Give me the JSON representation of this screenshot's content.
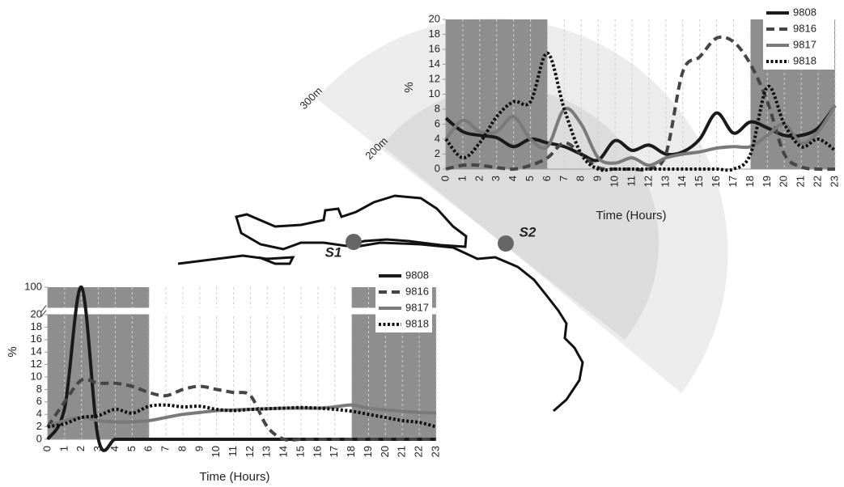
{
  "chart_data": [
    {
      "type": "line",
      "y_label": "%",
      "x_label": "Time (Hours)",
      "x": [
        0,
        1,
        2,
        3,
        4,
        5,
        6,
        7,
        8,
        9,
        10,
        11,
        12,
        13,
        14,
        15,
        16,
        17,
        18,
        19,
        20,
        21,
        22,
        23
      ],
      "xlim": [
        0,
        23
      ],
      "xticks": [
        0,
        1,
        2,
        3,
        4,
        5,
        6,
        7,
        8,
        9,
        10,
        11,
        12,
        13,
        14,
        15,
        16,
        17,
        18,
        19,
        20,
        21,
        22,
        23
      ],
      "ylim": [
        0,
        20
      ],
      "yticks": [
        0,
        2,
        4,
        6,
        8,
        10,
        12,
        14,
        16,
        18,
        20
      ],
      "shaded_ranges": [
        [
          0,
          6
        ],
        [
          18,
          23
        ]
      ],
      "grid": true,
      "legend": "top-right",
      "series": [
        {
          "name": "9808",
          "color": "#1a1a1a",
          "style": "solid",
          "values": [
            6.8,
            5,
            4.5,
            4.2,
            3,
            4,
            3.5,
            3,
            2,
            1.2,
            3.8,
            2.5,
            3.2,
            2,
            2.3,
            4,
            7.5,
            4.8,
            6.3,
            5.5,
            4.5,
            4.5,
            5.5,
            8.5
          ]
        },
        {
          "name": "9816",
          "color": "#454545",
          "style": "dashed",
          "values": [
            0,
            0.5,
            0.5,
            0.2,
            0,
            0.5,
            1.5,
            3.5,
            2,
            0.2,
            0,
            0,
            0,
            2,
            13,
            15,
            17.5,
            17,
            14,
            9,
            2,
            0.3,
            0,
            0
          ]
        },
        {
          "name": "9817",
          "color": "#7a7a7a",
          "style": "solid",
          "values": [
            4,
            6.5,
            5,
            5,
            7,
            4,
            3,
            8,
            6,
            1.5,
            0.8,
            1.5,
            0.5,
            1.5,
            2,
            2.3,
            2.8,
            3,
            3,
            4.5,
            6,
            3.5,
            5,
            8.5
          ]
        },
        {
          "name": "9818",
          "color": "#111111",
          "style": "dotted",
          "values": [
            4,
            1.5,
            3.5,
            7,
            9,
            9,
            15.5,
            8,
            2,
            0,
            0,
            0,
            0,
            0,
            0,
            0,
            0,
            0,
            2,
            11,
            6,
            3,
            4,
            2.5
          ]
        }
      ]
    },
    {
      "type": "line",
      "y_label": "%",
      "x_label": "Time (Hours)",
      "x": [
        0,
        1,
        2,
        3,
        4,
        5,
        6,
        7,
        8,
        9,
        10,
        11,
        12,
        13,
        14,
        15,
        16,
        17,
        18,
        19,
        20,
        21,
        22,
        23
      ],
      "xlim": [
        0,
        23
      ],
      "xticks": [
        0,
        1,
        2,
        3,
        4,
        5,
        6,
        7,
        8,
        9,
        10,
        11,
        12,
        13,
        14,
        15,
        16,
        17,
        18,
        19,
        20,
        21,
        22,
        23
      ],
      "ylim": [
        0,
        100
      ],
      "yticks": [
        0,
        2,
        4,
        6,
        8,
        10,
        12,
        14,
        16,
        18,
        20,
        100
      ],
      "y_break": [
        20,
        100
      ],
      "shaded_ranges": [
        [
          0,
          6
        ],
        [
          18,
          23
        ]
      ],
      "grid": true,
      "legend": "top-right",
      "series": [
        {
          "name": "9808",
          "color": "#1a1a1a",
          "style": "solid",
          "values": [
            0,
            5,
            100,
            0,
            0,
            0,
            0,
            0,
            0,
            0,
            0,
            0,
            0,
            0,
            0,
            0,
            0,
            0,
            0,
            0,
            0,
            0,
            0,
            0
          ]
        },
        {
          "name": "9816",
          "color": "#454545",
          "style": "dashed",
          "values": [
            2,
            6,
            9.5,
            9,
            9,
            8.5,
            7.5,
            7,
            8,
            8.5,
            8,
            7.5,
            7,
            2,
            0,
            0,
            0,
            0,
            0,
            0,
            0,
            0,
            0,
            0
          ]
        },
        {
          "name": "9817",
          "color": "#7a7a7a",
          "style": "solid",
          "values": [
            2,
            3,
            3.5,
            3,
            2.8,
            2.8,
            3,
            3.5,
            4,
            4.3,
            4.6,
            4.7,
            4.8,
            4.9,
            5,
            5,
            5,
            5.2,
            5.5,
            5,
            4.7,
            4.5,
            4.3,
            4.2
          ]
        },
        {
          "name": "9818",
          "color": "#111111",
          "style": "dotted",
          "values": [
            2,
            2.5,
            3.5,
            3.8,
            4.8,
            4.2,
            5.3,
            5.5,
            5.2,
            5.3,
            4.8,
            4.6,
            4.8,
            4.9,
            5,
            5.1,
            5,
            4.8,
            4.5,
            4,
            3.5,
            3,
            2.7,
            2
          ]
        }
      ]
    }
  ],
  "map": {
    "labels": [
      "300m",
      "200m"
    ],
    "sites": [
      "S1",
      "S2"
    ]
  }
}
